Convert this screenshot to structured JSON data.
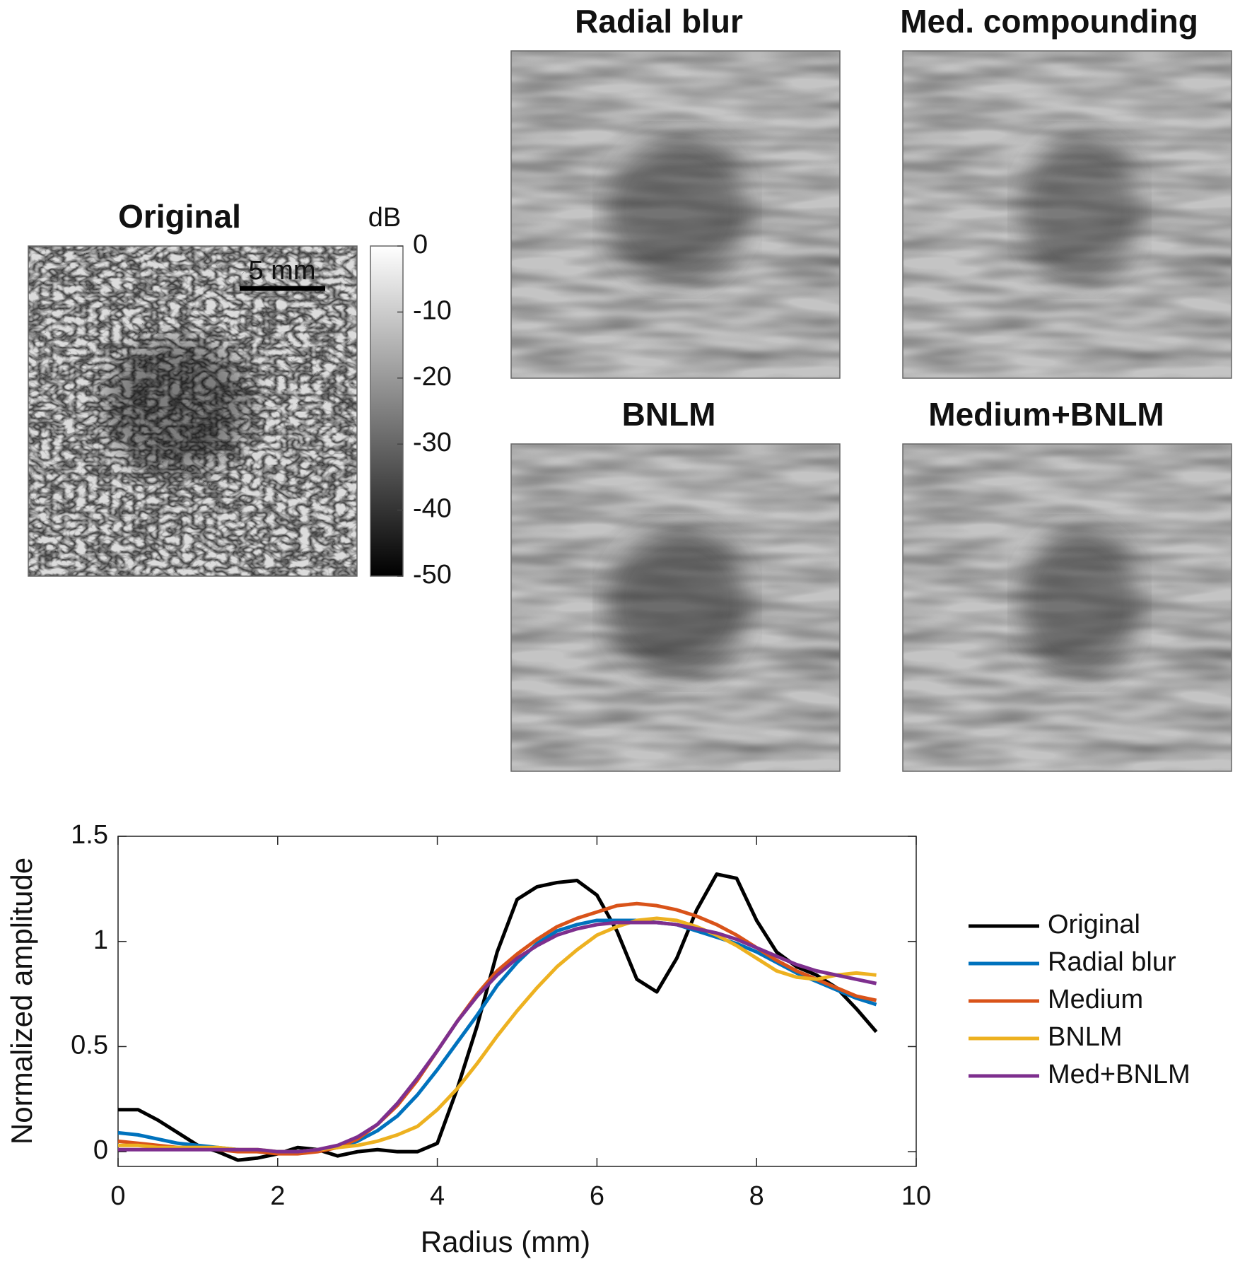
{
  "images": {
    "titles": [
      "Original",
      "Radial blur",
      "Med. compounding",
      "BNLM",
      "Medium+BNLM"
    ],
    "scale_bar": "5 mm",
    "colorbar": {
      "label": "dB",
      "lim": [
        -50,
        0
      ],
      "ticks": [
        0,
        -10,
        -20,
        -30,
        -40,
        -50
      ]
    }
  },
  "chart_data": {
    "type": "line",
    "x_label": "Radius (mm)",
    "y_label": "Normalized amplitude",
    "xlim": [
      0,
      10
    ],
    "ylim": [
      -0.07,
      1.5
    ],
    "xticks": [
      0,
      2,
      4,
      6,
      8,
      10
    ],
    "yticks": [
      0,
      0.5,
      1,
      1.5
    ],
    "legend": "outside-right",
    "x": [
      0,
      0.25,
      0.5,
      0.75,
      1,
      1.25,
      1.5,
      1.75,
      2,
      2.25,
      2.5,
      2.75,
      3,
      3.25,
      3.5,
      3.75,
      4,
      4.25,
      4.5,
      4.75,
      5,
      5.25,
      5.5,
      5.75,
      6,
      6.25,
      6.5,
      6.75,
      7,
      7.25,
      7.5,
      7.75,
      8,
      8.25,
      8.5,
      8.75,
      9,
      9.25,
      9.5
    ],
    "series": [
      {
        "name": "Original",
        "color": "#000000",
        "values": [
          0.2,
          0.2,
          0.15,
          0.09,
          0.03,
          0.0,
          -0.04,
          -0.03,
          -0.01,
          0.02,
          0.01,
          -0.02,
          0.0,
          0.01,
          0.0,
          0.0,
          0.04,
          0.3,
          0.6,
          0.95,
          1.2,
          1.26,
          1.28,
          1.29,
          1.22,
          1.05,
          0.82,
          0.76,
          0.92,
          1.15,
          1.32,
          1.3,
          1.1,
          0.95,
          0.88,
          0.84,
          0.78,
          0.68,
          0.57
        ]
      },
      {
        "name": "Radial blur",
        "color": "#0072bd",
        "values": [
          0.09,
          0.08,
          0.06,
          0.04,
          0.03,
          0.02,
          0.01,
          0.0,
          0.0,
          0.0,
          0.01,
          0.02,
          0.05,
          0.1,
          0.17,
          0.27,
          0.39,
          0.52,
          0.65,
          0.79,
          0.9,
          0.99,
          1.05,
          1.08,
          1.1,
          1.1,
          1.1,
          1.09,
          1.08,
          1.05,
          1.02,
          0.99,
          0.95,
          0.9,
          0.85,
          0.81,
          0.77,
          0.73,
          0.7
        ]
      },
      {
        "name": "Medium",
        "color": "#d95319",
        "values": [
          0.05,
          0.04,
          0.03,
          0.02,
          0.02,
          0.01,
          0.0,
          0.0,
          -0.01,
          -0.01,
          0.0,
          0.02,
          0.06,
          0.13,
          0.22,
          0.34,
          0.48,
          0.62,
          0.75,
          0.86,
          0.94,
          1.01,
          1.07,
          1.11,
          1.14,
          1.17,
          1.18,
          1.17,
          1.15,
          1.12,
          1.08,
          1.03,
          0.97,
          0.91,
          0.86,
          0.82,
          0.78,
          0.74,
          0.72
        ]
      },
      {
        "name": "BNLM",
        "color": "#edb120",
        "values": [
          0.03,
          0.03,
          0.02,
          0.02,
          0.02,
          0.02,
          0.01,
          0.01,
          0.0,
          0.0,
          0.01,
          0.02,
          0.03,
          0.05,
          0.08,
          0.12,
          0.2,
          0.3,
          0.42,
          0.55,
          0.67,
          0.78,
          0.88,
          0.96,
          1.03,
          1.07,
          1.1,
          1.11,
          1.1,
          1.07,
          1.03,
          0.98,
          0.92,
          0.86,
          0.83,
          0.82,
          0.84,
          0.85,
          0.84
        ]
      },
      {
        "name": "Med+BNLM",
        "color": "#7e2f8e",
        "values": [
          0.01,
          0.01,
          0.01,
          0.01,
          0.01,
          0.01,
          0.01,
          0.01,
          0.0,
          0.0,
          0.01,
          0.03,
          0.07,
          0.13,
          0.23,
          0.35,
          0.48,
          0.62,
          0.74,
          0.84,
          0.92,
          0.98,
          1.03,
          1.06,
          1.08,
          1.09,
          1.09,
          1.09,
          1.08,
          1.06,
          1.04,
          1.01,
          0.97,
          0.93,
          0.89,
          0.86,
          0.84,
          0.82,
          0.8
        ]
      }
    ]
  }
}
